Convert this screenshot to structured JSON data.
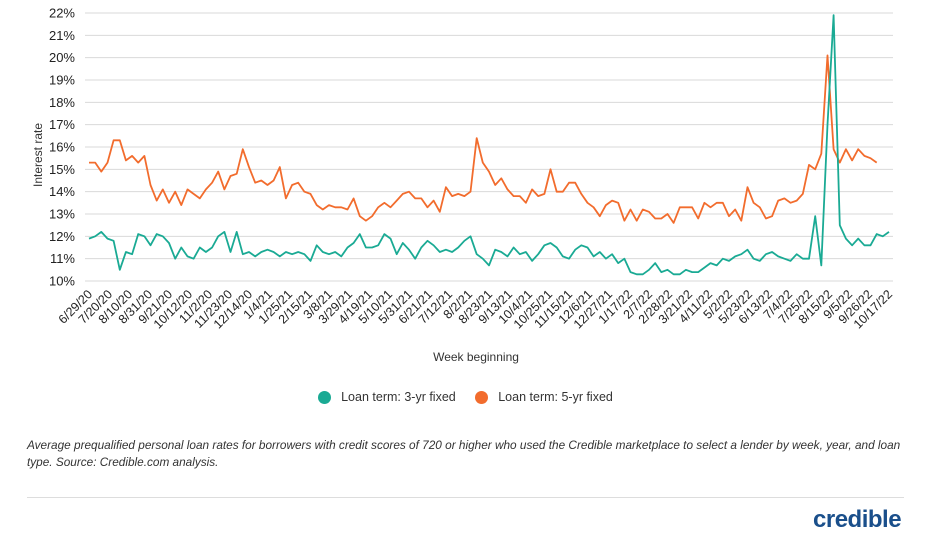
{
  "chart_data": {
    "type": "line",
    "title": "",
    "xlabel": "Week beginning",
    "ylabel": "Interest rate",
    "ylim": [
      10,
      22
    ],
    "y_ticks": [
      "10%",
      "11%",
      "12%",
      "13%",
      "14%",
      "15%",
      "16%",
      "17%",
      "18%",
      "19%",
      "20%",
      "21%",
      "22%"
    ],
    "grid": "horizontal",
    "legend_position": "bottom",
    "x_tick_labels": [
      "6/29/20",
      "7/20/20",
      "8/10/20",
      "8/31/20",
      "9/21/20",
      "10/12/20",
      "11/2/20",
      "11/23/20",
      "12/14/20",
      "1/4/21",
      "1/25/21",
      "2/15/21",
      "3/8/21",
      "3/29/21",
      "4/19/21",
      "5/10/21",
      "5/31/21",
      "6/21/21",
      "7/12/21",
      "8/2/21",
      "8/23/21",
      "9/13/21",
      "10/4/21",
      "10/25/21",
      "11/15/21",
      "12/6/21",
      "12/27/21",
      "1/17/22",
      "2/7/22",
      "2/28/22",
      "3/21/22",
      "4/11/22",
      "5/2/22",
      "5/23/22",
      "6/13/22",
      "7/4/22",
      "7/25/22",
      "8/15/22",
      "9/5/22",
      "9/26/22",
      "10/17/22"
    ],
    "series": [
      {
        "name": "Loan term: 3-yr fixed",
        "color": "#1aaa94",
        "values": [
          11.9,
          12.0,
          12.2,
          11.9,
          11.8,
          10.5,
          11.3,
          11.2,
          12.1,
          12.0,
          11.6,
          12.1,
          12.0,
          11.7,
          11.0,
          11.5,
          11.1,
          11.0,
          11.5,
          11.3,
          11.5,
          12.0,
          12.2,
          11.3,
          12.2,
          11.2,
          11.3,
          11.1,
          11.3,
          11.4,
          11.3,
          11.1,
          11.3,
          11.2,
          11.3,
          11.2,
          10.9,
          11.6,
          11.3,
          11.2,
          11.3,
          11.1,
          11.5,
          11.7,
          12.1,
          11.5,
          11.5,
          11.6,
          12.1,
          11.9,
          11.2,
          11.7,
          11.4,
          11.0,
          11.5,
          11.8,
          11.6,
          11.3,
          11.4,
          11.3,
          11.5,
          11.8,
          12.0,
          11.2,
          11.0,
          10.7,
          11.4,
          11.3,
          11.1,
          11.5,
          11.2,
          11.3,
          10.9,
          11.2,
          11.6,
          11.7,
          11.5,
          11.1,
          11.0,
          11.4,
          11.6,
          11.5,
          11.1,
          11.3,
          11.0,
          11.2,
          10.8,
          11.0,
          10.4,
          10.3,
          10.3,
          10.5,
          10.8,
          10.4,
          10.5,
          10.3,
          10.3,
          10.5,
          10.4,
          10.4,
          10.6,
          10.8,
          10.7,
          11.0,
          10.9,
          11.1,
          11.2,
          11.4,
          11.0,
          10.9,
          11.2,
          11.3,
          11.1,
          11.0,
          10.9,
          11.2,
          11.0,
          11.0,
          12.9,
          10.7,
          17.0,
          21.9,
          12.5,
          11.9,
          11.6,
          11.9,
          11.6,
          11.6,
          12.1,
          12.0,
          12.2
        ]
      },
      {
        "name": "Loan term: 5-yr fixed",
        "color": "#f26c2d",
        "values": [
          15.3,
          15.3,
          14.9,
          15.3,
          16.3,
          16.3,
          15.4,
          15.6,
          15.3,
          15.6,
          14.3,
          13.6,
          14.1,
          13.5,
          14.0,
          13.4,
          14.1,
          13.9,
          13.7,
          14.1,
          14.4,
          14.9,
          14.1,
          14.7,
          14.8,
          15.9,
          15.1,
          14.4,
          14.5,
          14.3,
          14.5,
          15.1,
          13.7,
          14.3,
          14.4,
          14.0,
          13.9,
          13.4,
          13.2,
          13.4,
          13.3,
          13.3,
          13.2,
          13.7,
          12.9,
          12.7,
          12.9,
          13.3,
          13.5,
          13.3,
          13.6,
          13.9,
          14.0,
          13.7,
          13.7,
          13.3,
          13.6,
          13.1,
          14.2,
          13.8,
          13.9,
          13.8,
          14.0,
          16.4,
          15.3,
          14.9,
          14.3,
          14.6,
          14.1,
          13.8,
          13.8,
          13.5,
          14.1,
          13.8,
          13.9,
          15.0,
          14.0,
          14.0,
          14.4,
          14.4,
          13.9,
          13.5,
          13.3,
          12.9,
          13.4,
          13.6,
          13.5,
          12.7,
          13.2,
          12.7,
          13.2,
          13.1,
          12.8,
          12.8,
          13.0,
          12.6,
          13.3,
          13.3,
          13.3,
          12.8,
          13.5,
          13.3,
          13.5,
          13.5,
          12.9,
          13.2,
          12.7,
          14.2,
          13.5,
          13.3,
          12.8,
          12.9,
          13.6,
          13.7,
          13.5,
          13.6,
          13.9,
          15.2,
          15.0,
          15.7,
          20.1,
          15.9,
          15.3,
          15.9,
          15.4,
          15.9,
          15.6,
          15.5,
          15.3
        ]
      }
    ]
  },
  "legend": {
    "items": [
      {
        "label": "Loan term: 3-yr fixed",
        "color": "#1aaa94"
      },
      {
        "label": "Loan term: 5-yr fixed",
        "color": "#f26c2d"
      }
    ]
  },
  "caption": "Average prequalified personal loan rates for borrowers with credit scores of 720 or higher who used the Credible marketplace to select a lender by week, year, and loan type. Source: Credible.com analysis.",
  "logo_text": "credible"
}
